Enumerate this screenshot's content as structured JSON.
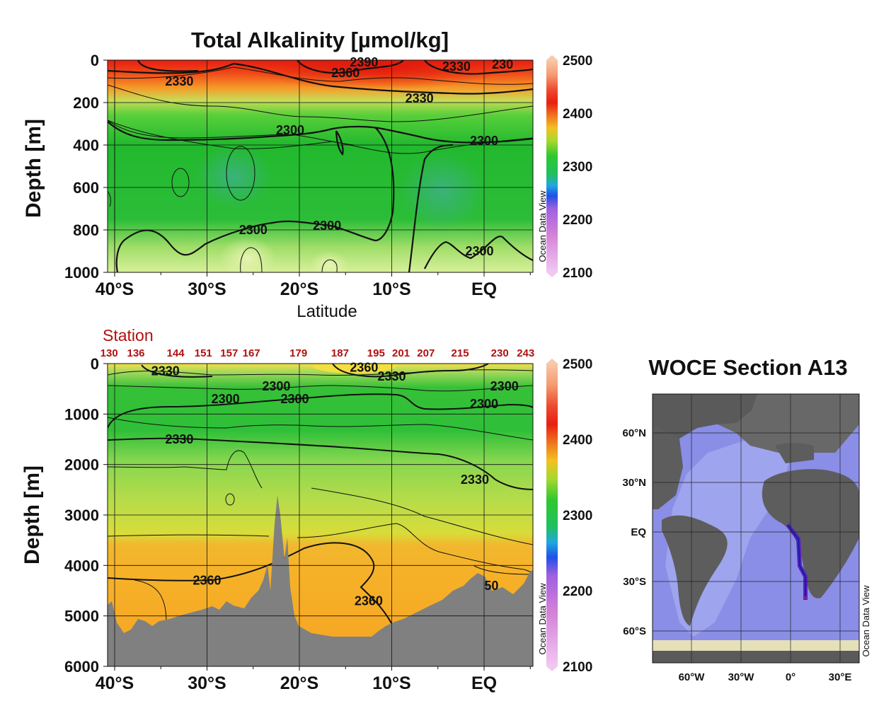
{
  "chart_data": [
    {
      "type": "heatmap",
      "title": "Total Alkalinity [µmol/kg]",
      "xlabel": "Latitude",
      "ylabel": "Depth [m]",
      "x_ticks": [
        "40°S",
        "30°S",
        "20°S",
        "10°S",
        "EQ"
      ],
      "y_ticks": [
        "0",
        "200",
        "400",
        "600",
        "800",
        "1000"
      ],
      "ylim": [
        1000,
        0
      ],
      "contour_labels": [
        {
          "text": "2330",
          "lat": -33,
          "depth": 100
        },
        {
          "text": "2360",
          "lat": -15,
          "depth": 60
        },
        {
          "text": "2390",
          "lat": -13,
          "depth": 10
        },
        {
          "text": "2330",
          "lat": -3,
          "depth": 30
        },
        {
          "text": "230",
          "lat": 2,
          "depth": 20
        },
        {
          "text": "2330",
          "lat": -7,
          "depth": 180
        },
        {
          "text": "2300",
          "lat": -21,
          "depth": 330
        },
        {
          "text": "2300",
          "lat": 0,
          "depth": 380
        },
        {
          "text": "2300",
          "lat": -25,
          "depth": 800
        },
        {
          "text": "2300",
          "lat": -17,
          "depth": 780
        },
        {
          "text": "2300",
          "lat": -0.5,
          "depth": 900
        }
      ],
      "colorbar": {
        "ticks": [
          "2500",
          "2400",
          "2300",
          "2200",
          "2100"
        ],
        "range": [
          2100,
          2500
        ],
        "caption": "Ocean Data View"
      }
    },
    {
      "type": "heatmap",
      "xlabel": "",
      "ylabel": "Depth [m]",
      "x_ticks": [
        "40°S",
        "30°S",
        "20°S",
        "10°S",
        "EQ"
      ],
      "y_ticks": [
        "0",
        "1000",
        "2000",
        "3000",
        "4000",
        "5000",
        "6000"
      ],
      "ylim": [
        6000,
        0
      ],
      "station_title": "Station",
      "stations": [
        {
          "id": "130",
          "lat": -40.6
        },
        {
          "id": "136",
          "lat": -37.7
        },
        {
          "id": "144",
          "lat": -33.4
        },
        {
          "id": "151",
          "lat": -30.4
        },
        {
          "id": "157",
          "lat": -27.6
        },
        {
          "id": "167",
          "lat": -25.2
        },
        {
          "id": "179",
          "lat": -20.1
        },
        {
          "id": "187",
          "lat": -15.6
        },
        {
          "id": "195",
          "lat": -11.7
        },
        {
          "id": "201",
          "lat": -9.0
        },
        {
          "id": "207",
          "lat": -6.3
        },
        {
          "id": "215",
          "lat": -2.6
        },
        {
          "id": "230",
          "lat": 1.7
        },
        {
          "id": "243",
          "lat": 4.5
        }
      ],
      "contour_labels": [
        {
          "text": "2330",
          "lat": -34.5,
          "depth": 150
        },
        {
          "text": "2360",
          "lat": -13,
          "depth": 80
        },
        {
          "text": "2330",
          "lat": -10,
          "depth": 250
        },
        {
          "text": "2300",
          "lat": -22.5,
          "depth": 450
        },
        {
          "text": "2300",
          "lat": -28,
          "depth": 700
        },
        {
          "text": "2300",
          "lat": -20.5,
          "depth": 700
        },
        {
          "text": "2300",
          "lat": 2.2,
          "depth": 450
        },
        {
          "text": "2300",
          "lat": 0,
          "depth": 800
        },
        {
          "text": "2330",
          "lat": -33,
          "depth": 1500
        },
        {
          "text": "2330",
          "lat": -1,
          "depth": 2300
        },
        {
          "text": "2360",
          "lat": -30,
          "depth": 4300
        },
        {
          "text": "2360",
          "lat": -12.5,
          "depth": 4700
        },
        {
          "text": "50",
          "lat": 0.8,
          "depth": 4400
        }
      ],
      "colorbar": {
        "ticks": [
          "2500",
          "2400",
          "2300",
          "2200",
          "2100"
        ],
        "range": [
          2100,
          2500
        ],
        "caption": "Ocean Data View"
      }
    }
  ],
  "inset_map": {
    "title": "WOCE Section A13",
    "lat_ticks": [
      "60°N",
      "30°N",
      "EQ",
      "30°S",
      "60°S"
    ],
    "lon_ticks": [
      "60°W",
      "30°W",
      "0°",
      "30°E"
    ],
    "caption": "Ocean Data View"
  }
}
